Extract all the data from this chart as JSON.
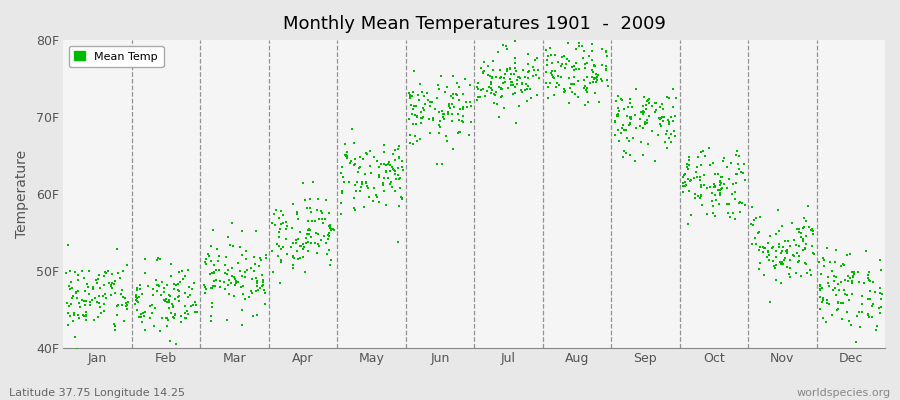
{
  "title": "Monthly Mean Temperatures 1901  -  2009",
  "ylabel": "Temperature",
  "ylabel_bottom": "Latitude 37.75 Longitude 14.25",
  "watermark": "worldspecies.org",
  "legend_label": "Mean Temp",
  "ylim": [
    40,
    80
  ],
  "yticks": [
    40,
    50,
    60,
    70,
    80
  ],
  "ytick_labels": [
    "40F",
    "50F",
    "60F",
    "70F",
    "80F"
  ],
  "month_labels": [
    "Jan",
    "Feb",
    "Mar",
    "Apr",
    "May",
    "Jun",
    "Jul",
    "Aug",
    "Sep",
    "Oct",
    "Nov",
    "Dec"
  ],
  "dot_color": "#00bb00",
  "background_color": "#e8e8e8",
  "plot_bg_color": "#f5f5f5",
  "monthly_mean_temps_F": [
    46.5,
    46.0,
    49.5,
    55.0,
    62.5,
    70.5,
    75.0,
    75.5,
    69.5,
    61.5,
    53.0,
    47.5
  ],
  "monthly_std_F": [
    2.5,
    2.6,
    2.4,
    2.5,
    2.5,
    2.3,
    2.0,
    2.0,
    2.3,
    2.5,
    2.5,
    2.6
  ],
  "n_years": 109,
  "seed": 42
}
